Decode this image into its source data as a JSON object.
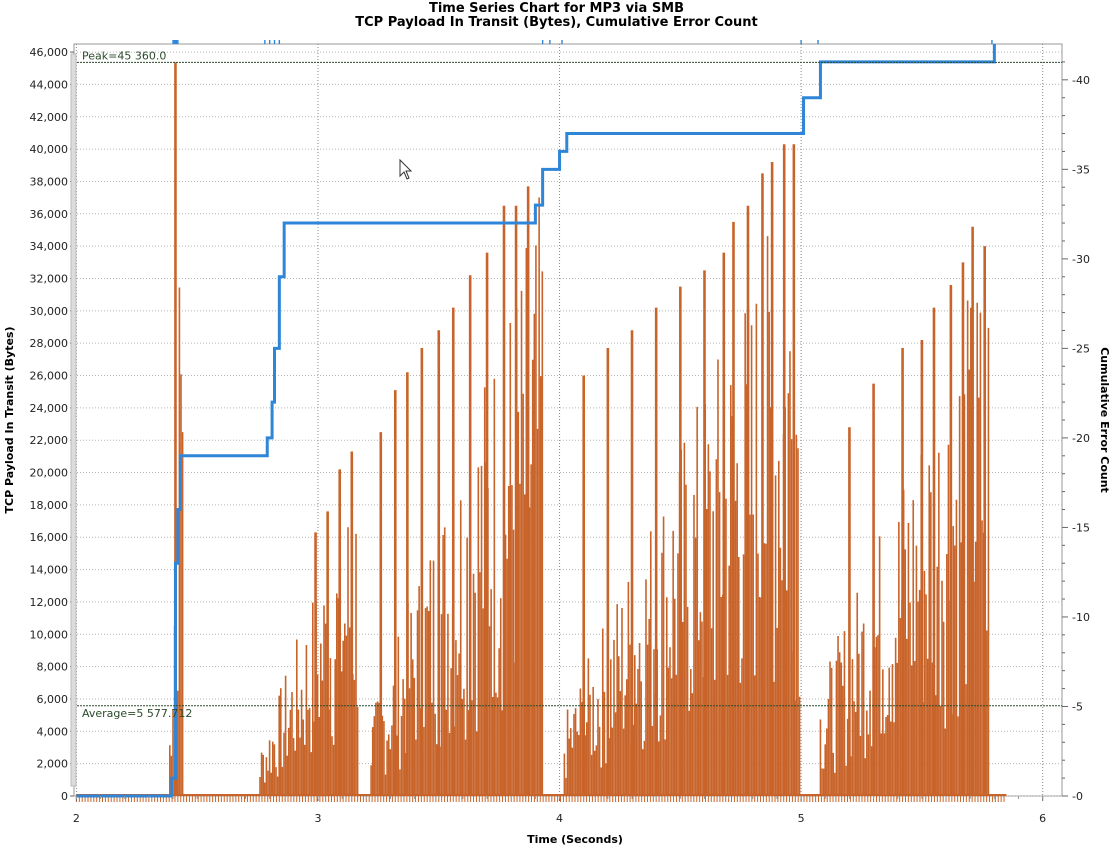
{
  "chart_data": {
    "type": "line",
    "title": "Time Series Chart for MP3 via SMB",
    "subtitle": "TCP Payload In Transit (Bytes), Cumulative Error Count",
    "xlabel": "Time (Seconds)",
    "ylabel": "TCP Payload In Transit (Bytes)",
    "y2label": "Cumulative Error Count",
    "xlim": [
      1.99,
      6.08
    ],
    "ylim": [
      0,
      46500
    ],
    "y2lim": [
      0,
      42
    ],
    "x_ticks": [
      2,
      3,
      4,
      5,
      6
    ],
    "y_ticks": [
      "0",
      "2,000",
      "4,000",
      "6,000",
      "8,000",
      "10,000",
      "12,000",
      "14,000",
      "16,000",
      "18,000",
      "20,000",
      "22,000",
      "24,000",
      "26,000",
      "28,000",
      "30,000",
      "32,000",
      "34,000",
      "36,000",
      "38,000",
      "40,000",
      "42,000",
      "44,000",
      "46,000"
    ],
    "y2_ticks": [
      "0",
      "5",
      "10",
      "15",
      "20",
      "25",
      "30",
      "35",
      "40"
    ],
    "grid": true,
    "annotations": {
      "peak": "Peak=45 360.0",
      "average": "Average=5 577.712"
    },
    "peak_value": 45360.0,
    "average_value": 5577.712,
    "colors": {
      "payload": "#c8642a",
      "errors": "#2f86d8",
      "grid": "#b5b5b5",
      "ref_line": "#2b4a2b"
    },
    "series": [
      {
        "axis": "left",
        "style": "dense-spikes",
        "bursts": [
          {
            "x": [
              2.38,
              2.44
            ],
            "y": [
              0,
              45360
            ]
          },
          {
            "x": [
              2.76,
              3.17
            ],
            "y": [
              3000,
              21300
            ]
          },
          {
            "x": [
              3.22,
              3.93
            ],
            "y": [
              5000,
              38000
            ]
          },
          {
            "x": [
              4.02,
              5.0
            ],
            "y": [
              5000,
              40300
            ]
          },
          {
            "x": [
              5.08,
              5.78
            ],
            "y": [
              7000,
              35200
            ]
          }
        ],
        "peaks": [
          {
            "x": 2.41,
            "y": 45360
          },
          {
            "x": 2.99,
            "y": 16300
          },
          {
            "x": 3.04,
            "y": 17600
          },
          {
            "x": 3.09,
            "y": 20200
          },
          {
            "x": 3.14,
            "y": 21300
          },
          {
            "x": 3.26,
            "y": 22500
          },
          {
            "x": 3.32,
            "y": 25100
          },
          {
            "x": 3.37,
            "y": 26200
          },
          {
            "x": 3.43,
            "y": 27700
          },
          {
            "x": 3.5,
            "y": 28800
          },
          {
            "x": 3.56,
            "y": 30200
          },
          {
            "x": 3.63,
            "y": 32200
          },
          {
            "x": 3.7,
            "y": 33600
          },
          {
            "x": 3.77,
            "y": 36500
          },
          {
            "x": 3.82,
            "y": 36500
          },
          {
            "x": 3.87,
            "y": 37700
          },
          {
            "x": 4.1,
            "y": 26000
          },
          {
            "x": 4.2,
            "y": 27700
          },
          {
            "x": 4.3,
            "y": 28800
          },
          {
            "x": 4.4,
            "y": 30200
          },
          {
            "x": 4.5,
            "y": 31500
          },
          {
            "x": 4.6,
            "y": 32500
          },
          {
            "x": 4.68,
            "y": 33600
          },
          {
            "x": 4.72,
            "y": 35500
          },
          {
            "x": 4.78,
            "y": 36500
          },
          {
            "x": 4.84,
            "y": 38500
          },
          {
            "x": 4.88,
            "y": 39200
          },
          {
            "x": 4.93,
            "y": 40300
          },
          {
            "x": 4.97,
            "y": 40300
          },
          {
            "x": 5.2,
            "y": 22800
          },
          {
            "x": 5.3,
            "y": 25500
          },
          {
            "x": 5.42,
            "y": 27700
          },
          {
            "x": 5.5,
            "y": 28200
          },
          {
            "x": 5.55,
            "y": 30200
          },
          {
            "x": 5.62,
            "y": 31600
          },
          {
            "x": 5.67,
            "y": 33000
          },
          {
            "x": 5.71,
            "y": 35200
          },
          {
            "x": 5.76,
            "y": 34000
          }
        ]
      },
      {
        "axis": "right",
        "style": "step",
        "x": [
          2.0,
          2.395,
          2.41,
          2.42,
          2.43,
          2.44,
          2.78,
          2.79,
          2.81,
          2.82,
          2.84,
          2.86,
          2.9,
          3.89,
          3.9,
          3.93,
          3.95,
          4.0,
          4.03,
          4.05,
          4.5,
          5.0,
          5.01,
          5.07,
          5.08,
          5.79,
          5.8
        ],
        "y": [
          0,
          1,
          13,
          16,
          19,
          19,
          19,
          20,
          22,
          25,
          29,
          32,
          32,
          32,
          33,
          35,
          35,
          36,
          37,
          37,
          37,
          37,
          39,
          39,
          41,
          41,
          42
        ]
      }
    ]
  }
}
